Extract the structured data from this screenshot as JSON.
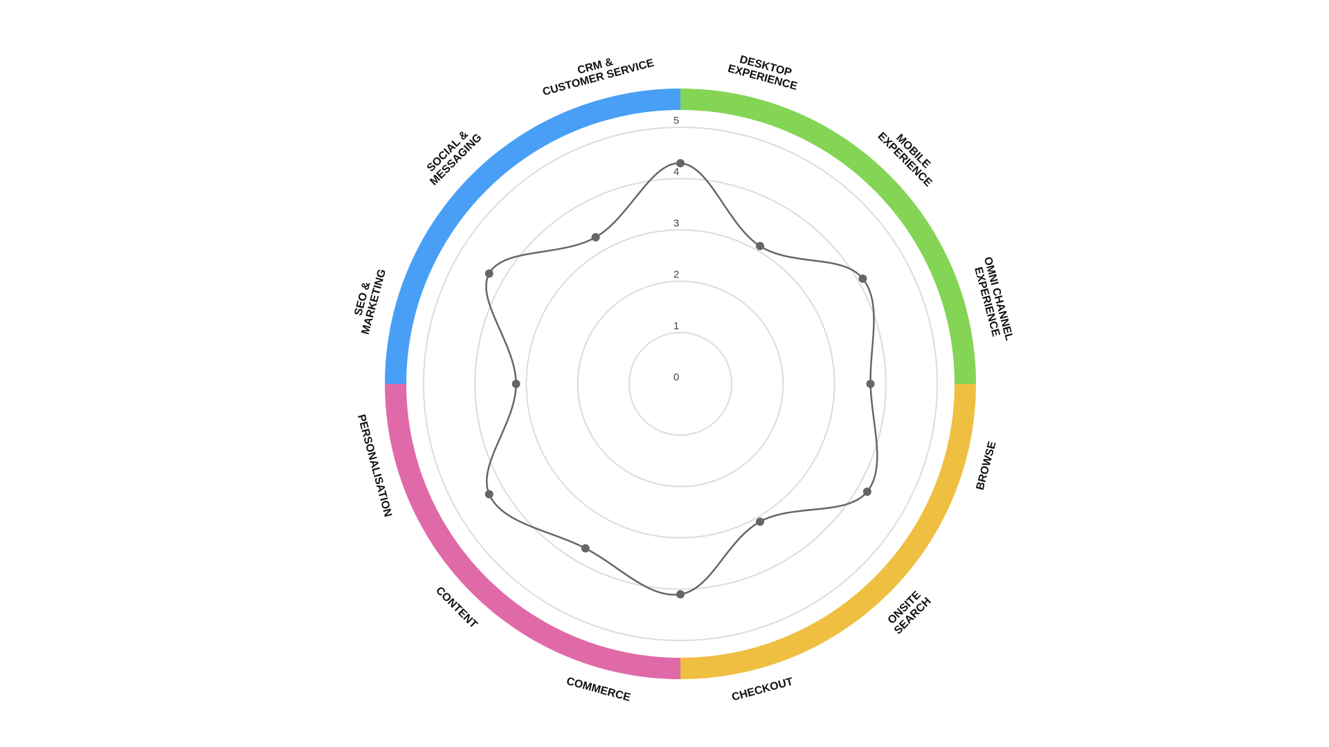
{
  "chart_data": {
    "type": "radar",
    "categories": [
      [
        "DESKTOP",
        "EXPERIENCE"
      ],
      [
        "MOBILE",
        "EXPERIENCE"
      ],
      [
        "OMNI CHANNEL",
        "EXPERIENCE"
      ],
      [
        "BROWSE"
      ],
      [
        "ONSITE",
        "SEARCH"
      ],
      [
        "CHECKOUT"
      ],
      [
        "COMMERCE"
      ],
      [
        "CONTENT"
      ],
      [
        "PERSONALISATION"
      ],
      [
        "SEO &",
        "MARKETING"
      ],
      [
        "SOCIAL &",
        "MESSAGING"
      ],
      [
        "CRM &",
        "CUSTOMER SERVICE"
      ]
    ],
    "values": [
      4.3,
      3.1,
      4.1,
      3.7,
      4.2,
      3.1,
      4.1,
      3.7,
      4.3,
      3.2,
      4.3,
      3.3
    ],
    "color": "#666666",
    "sector_colors": [
      "#84d455",
      "#efbf42",
      "#e06aa8",
      "#489ff5"
    ],
    "ylim": [
      0,
      5
    ],
    "yticks": [
      0,
      1,
      2,
      3,
      4,
      5
    ],
    "grid": true
  }
}
